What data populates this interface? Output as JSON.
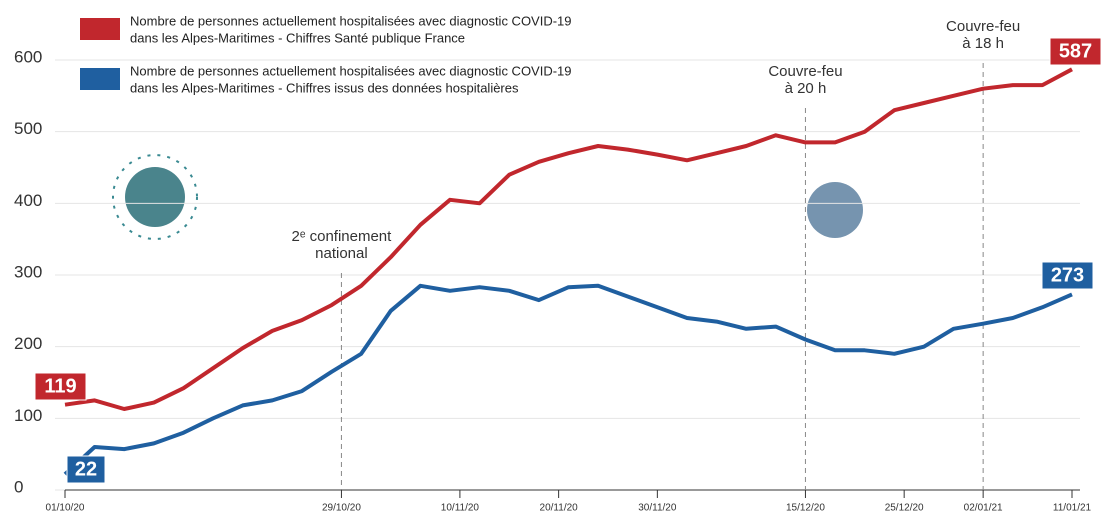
{
  "chart_data": {
    "type": "line",
    "x": [
      "01/10/20",
      "04/10/20",
      "07/10/20",
      "10/10/20",
      "13/10/20",
      "16/10/20",
      "19/10/20",
      "22/10/20",
      "25/10/20",
      "28/10/20",
      "31/10/20",
      "03/11/20",
      "06/11/20",
      "09/11/20",
      "12/11/20",
      "15/11/20",
      "18/11/20",
      "21/11/20",
      "24/11/20",
      "27/11/20",
      "30/11/20",
      "03/12/20",
      "06/12/20",
      "09/12/20",
      "12/12/20",
      "15/12/20",
      "18/12/20",
      "21/12/20",
      "24/12/20",
      "27/12/20",
      "30/12/20",
      "02/01/21",
      "05/01/21",
      "08/01/21",
      "11/01/21"
    ],
    "series": [
      {
        "name": [
          "Nombre de personnes actuellement hospitalisées avec diagnostic COVID-19",
          "dans les Alpes-Maritimes - Chiffres Santé publique France"
        ],
        "color": "#c1272d",
        "values": [
          119,
          125,
          113,
          122,
          142,
          170,
          198,
          222,
          237,
          258,
          285,
          325,
          370,
          405,
          400,
          440,
          458,
          470,
          480,
          475,
          468,
          460,
          470,
          480,
          495,
          485,
          485,
          500,
          530,
          540,
          550,
          560,
          565,
          565,
          587
        ]
      },
      {
        "name": [
          "Nombre de personnes actuellement hospitalisées avec diagnostic COVID-19",
          "dans les Alpes-Maritimes - Chiffres issus des données hospitalières"
        ],
        "color": "#1f5fa0",
        "values": [
          22,
          60,
          57,
          65,
          80,
          100,
          118,
          125,
          138,
          165,
          190,
          250,
          285,
          278,
          283,
          278,
          265,
          283,
          285,
          270,
          255,
          240,
          235,
          225,
          228,
          210,
          195,
          195,
          190,
          200,
          225,
          232,
          240,
          255,
          273
        ]
      }
    ],
    "xlim": [
      "01/10/20",
      "11/01/21"
    ],
    "xticks": [
      "01/10/20",
      "29/10/20",
      "10/11/20",
      "20/11/20",
      "30/11/20",
      "15/12/20",
      "25/12/20",
      "02/01/21",
      "11/01/21"
    ],
    "ylim": [
      0,
      600
    ],
    "yticks": [
      0,
      100,
      200,
      300,
      400,
      500,
      600
    ],
    "grid": true,
    "annotations": [
      {
        "date": "29/10/20",
        "lines": [
          "2ᵉ confinement",
          "national"
        ]
      },
      {
        "date": "15/12/20",
        "lines": [
          "Couvre-feu",
          "à 20 h"
        ]
      },
      {
        "date": "02/01/21",
        "lines": [
          "Couvre-feu",
          "à 18 h"
        ]
      }
    ]
  }
}
